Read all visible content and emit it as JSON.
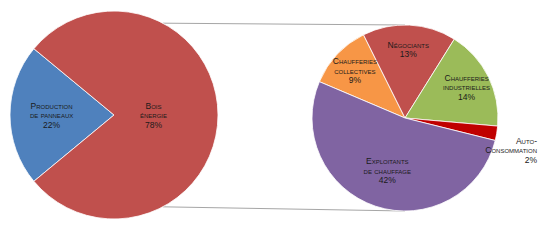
{
  "chart_data": [
    {
      "type": "pie",
      "categories": [
        "Production de panneaux",
        "Bois énergie"
      ],
      "values": [
        22,
        78
      ],
      "value_labels": [
        "22%",
        "78%"
      ],
      "colors": [
        "#4f81bd",
        "#c0504d"
      ],
      "data_labels": true
    },
    {
      "type": "pie",
      "categories": [
        "Chaufferies collectives",
        "Négociants",
        "Chaufferies industrielles",
        "Auto-Consommation",
        "Exploitants de chauffage"
      ],
      "values": [
        9,
        13,
        14,
        2,
        42
      ],
      "value_labels": [
        "9%",
        "13%",
        "14%",
        "2%",
        "42%"
      ],
      "colors": [
        "#f79646",
        "#c0504d",
        "#9bbb59",
        "#c00000",
        "#8064a2"
      ],
      "data_labels": true
    }
  ]
}
